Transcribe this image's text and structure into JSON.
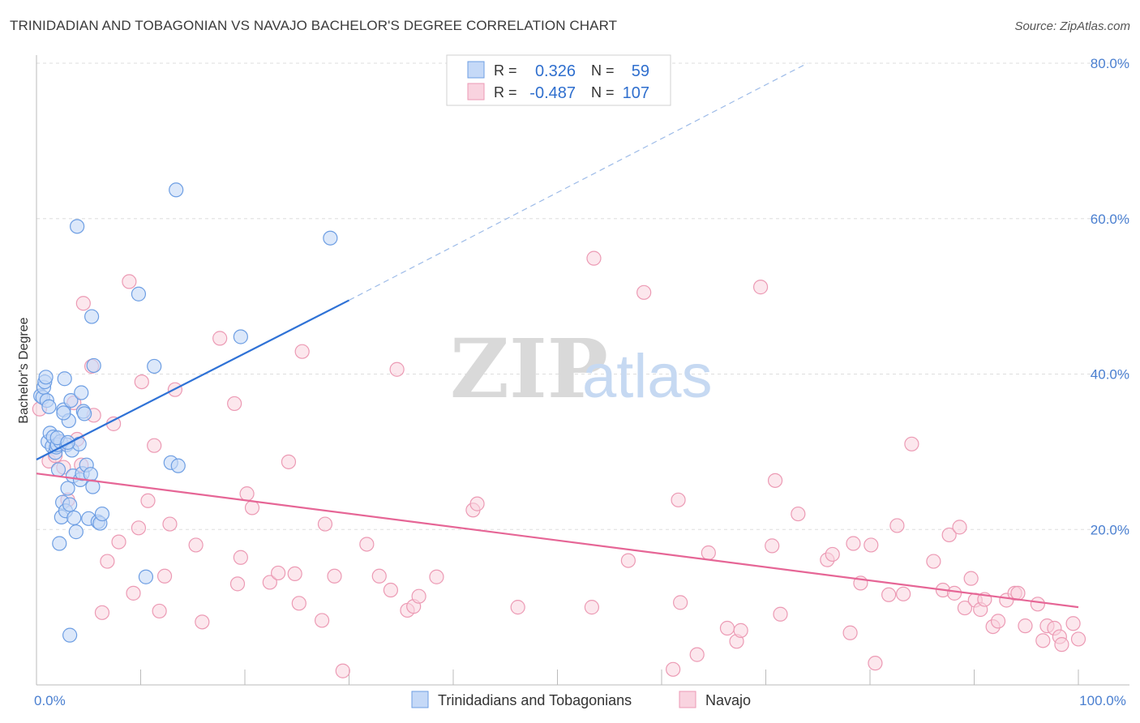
{
  "title": "TRINIDADIAN AND TOBAGONIAN VS NAVAJO BACHELOR'S DEGREE CORRELATION CHART",
  "source": "Source: ZipAtlas.com",
  "watermark": {
    "zip": "ZIP",
    "atlas": "atlas"
  },
  "colors": {
    "blue_fill": "#c5d9f7",
    "blue_stroke": "#6d9ee3",
    "blue_line": "#2f72d6",
    "pink_fill": "#f9d3df",
    "pink_stroke": "#ec9ab4",
    "pink_line": "#e66696",
    "grid": "#dddddd",
    "tick_text": "#4a7fd0"
  },
  "legend": {
    "rows": [
      {
        "r_label": "R =",
        "r_value": "0.326",
        "n_label": "N =",
        "n_value": "59",
        "series": "blue"
      },
      {
        "r_label": "R =",
        "r_value": "-0.487",
        "n_label": "N =",
        "n_value": "107",
        "series": "pink"
      }
    ]
  },
  "bottom_legend": [
    "Trinidadians and Tobagonians",
    "Navajo"
  ],
  "chart_data": {
    "type": "scatter",
    "title": "TRINIDADIAN AND TOBAGONIAN VS NAVAJO BACHELOR'S DEGREE CORRELATION CHART",
    "xlabel": "",
    "ylabel": "Bachelor's Degree",
    "xlim": [
      0,
      100
    ],
    "ylim": [
      0,
      80
    ],
    "x_tick_labels": [
      {
        "value": 0,
        "label": "0.0%"
      },
      {
        "value": 100,
        "label": "100.0%"
      }
    ],
    "y_tick_labels": [
      {
        "value": 20,
        "label": "20.0%"
      },
      {
        "value": 40,
        "label": "40.0%"
      },
      {
        "value": 60,
        "label": "60.0%"
      },
      {
        "value": 80,
        "label": "80.0%"
      }
    ],
    "series": [
      {
        "name": "Trinidadians and Tobagonians",
        "color": "blue",
        "R": 0.326,
        "N": 59,
        "trend": {
          "x0": 0,
          "y0": 29.0,
          "x1": 30,
          "y1": 49.5,
          "dashed_to_x": 74,
          "dashed_to_y": 80
        },
        "points": [
          [
            0.4,
            37.2
          ],
          [
            0.6,
            37.0
          ],
          [
            0.7,
            38.3
          ],
          [
            0.8,
            39.0
          ],
          [
            0.9,
            39.6
          ],
          [
            1.0,
            36.6
          ],
          [
            1.1,
            31.3
          ],
          [
            1.3,
            32.4
          ],
          [
            1.5,
            30.7
          ],
          [
            1.6,
            31.9
          ],
          [
            1.8,
            29.9
          ],
          [
            1.9,
            30.6
          ],
          [
            2.0,
            30.9
          ],
          [
            2.1,
            27.7
          ],
          [
            2.2,
            18.2
          ],
          [
            2.3,
            31.3
          ],
          [
            2.4,
            21.6
          ],
          [
            2.5,
            23.5
          ],
          [
            2.6,
            35.4
          ],
          [
            2.7,
            39.4
          ],
          [
            2.8,
            22.4
          ],
          [
            2.9,
            30.9
          ],
          [
            3.0,
            25.3
          ],
          [
            3.1,
            34.0
          ],
          [
            3.2,
            23.2
          ],
          [
            3.3,
            36.6
          ],
          [
            3.4,
            30.2
          ],
          [
            3.5,
            26.9
          ],
          [
            3.6,
            21.5
          ],
          [
            3.8,
            19.7
          ],
          [
            3.9,
            59.0
          ],
          [
            4.1,
            31.0
          ],
          [
            4.2,
            26.4
          ],
          [
            4.3,
            37.6
          ],
          [
            4.4,
            27.2
          ],
          [
            4.5,
            35.2
          ],
          [
            4.6,
            34.9
          ],
          [
            4.8,
            28.3
          ],
          [
            5.0,
            21.4
          ],
          [
            5.2,
            27.1
          ],
          [
            5.3,
            47.4
          ],
          [
            5.4,
            25.5
          ],
          [
            5.5,
            41.1
          ],
          [
            5.9,
            21.0
          ],
          [
            6.1,
            20.8
          ],
          [
            6.3,
            22.0
          ],
          [
            9.8,
            50.3
          ],
          [
            10.5,
            13.9
          ],
          [
            11.3,
            41.0
          ],
          [
            12.9,
            28.6
          ],
          [
            13.4,
            63.7
          ],
          [
            13.6,
            28.2
          ],
          [
            19.6,
            44.8
          ],
          [
            28.2,
            57.5
          ],
          [
            3.2,
            6.4
          ],
          [
            2.6,
            35.0
          ],
          [
            1.2,
            35.8
          ],
          [
            2.0,
            31.8
          ],
          [
            3.0,
            31.2
          ]
        ]
      },
      {
        "name": "Navajo",
        "color": "pink",
        "R": -0.487,
        "N": 107,
        "trend": {
          "x0": 0,
          "y0": 27.2,
          "x1": 100,
          "y1": 10.0
        },
        "points": [
          [
            0.3,
            35.5
          ],
          [
            1.2,
            28.8
          ],
          [
            1.8,
            29.5
          ],
          [
            2.4,
            31.1
          ],
          [
            2.6,
            28.0
          ],
          [
            3.0,
            23.8
          ],
          [
            3.6,
            36.3
          ],
          [
            3.9,
            31.6
          ],
          [
            4.3,
            28.3
          ],
          [
            4.5,
            49.1
          ],
          [
            5.3,
            41.0
          ],
          [
            5.5,
            34.7
          ],
          [
            6.3,
            9.3
          ],
          [
            6.8,
            15.9
          ],
          [
            7.4,
            33.6
          ],
          [
            7.9,
            18.4
          ],
          [
            8.9,
            51.9
          ],
          [
            9.3,
            11.8
          ],
          [
            9.8,
            20.2
          ],
          [
            10.1,
            39.0
          ],
          [
            10.7,
            23.7
          ],
          [
            11.3,
            30.8
          ],
          [
            11.8,
            9.5
          ],
          [
            12.3,
            14.0
          ],
          [
            12.8,
            20.7
          ],
          [
            13.3,
            38.0
          ],
          [
            15.3,
            18.0
          ],
          [
            15.9,
            8.1
          ],
          [
            17.6,
            44.6
          ],
          [
            19.0,
            36.2
          ],
          [
            19.3,
            13.0
          ],
          [
            19.6,
            16.4
          ],
          [
            20.2,
            24.6
          ],
          [
            20.7,
            22.8
          ],
          [
            22.4,
            13.2
          ],
          [
            23.2,
            14.4
          ],
          [
            24.2,
            28.7
          ],
          [
            24.8,
            14.3
          ],
          [
            25.2,
            10.5
          ],
          [
            25.5,
            42.9
          ],
          [
            27.4,
            8.3
          ],
          [
            27.7,
            20.7
          ],
          [
            28.6,
            14.0
          ],
          [
            29.4,
            1.8
          ],
          [
            31.7,
            18.1
          ],
          [
            32.9,
            14.0
          ],
          [
            34.0,
            12.2
          ],
          [
            34.6,
            40.6
          ],
          [
            35.6,
            9.6
          ],
          [
            36.2,
            10.1
          ],
          [
            36.7,
            11.4
          ],
          [
            38.4,
            13.9
          ],
          [
            41.9,
            22.5
          ],
          [
            42.3,
            23.3
          ],
          [
            46.2,
            10.0
          ],
          [
            53.3,
            10.0
          ],
          [
            53.5,
            54.9
          ],
          [
            56.8,
            16.0
          ],
          [
            58.3,
            50.5
          ],
          [
            61.1,
            2.0
          ],
          [
            61.6,
            23.8
          ],
          [
            61.8,
            10.6
          ],
          [
            63.4,
            3.9
          ],
          [
            64.5,
            17.0
          ],
          [
            66.3,
            7.3
          ],
          [
            67.2,
            5.6
          ],
          [
            67.6,
            7.0
          ],
          [
            69.5,
            51.2
          ],
          [
            70.6,
            17.9
          ],
          [
            70.9,
            26.3
          ],
          [
            71.4,
            9.1
          ],
          [
            73.1,
            22.0
          ],
          [
            75.9,
            16.1
          ],
          [
            76.4,
            16.8
          ],
          [
            78.1,
            6.7
          ],
          [
            78.4,
            18.2
          ],
          [
            79.1,
            13.1
          ],
          [
            80.1,
            18.0
          ],
          [
            80.5,
            2.8
          ],
          [
            81.8,
            11.6
          ],
          [
            82.6,
            20.5
          ],
          [
            83.2,
            11.7
          ],
          [
            84.0,
            31.0
          ],
          [
            86.1,
            15.9
          ],
          [
            87.0,
            12.2
          ],
          [
            87.6,
            19.3
          ],
          [
            88.1,
            11.8
          ],
          [
            88.6,
            20.3
          ],
          [
            89.1,
            9.9
          ],
          [
            89.7,
            13.7
          ],
          [
            90.1,
            10.9
          ],
          [
            90.6,
            9.7
          ],
          [
            91.0,
            11.0
          ],
          [
            91.8,
            7.5
          ],
          [
            92.3,
            8.2
          ],
          [
            93.1,
            10.9
          ],
          [
            93.9,
            11.8
          ],
          [
            94.2,
            11.8
          ],
          [
            94.9,
            7.6
          ],
          [
            96.1,
            10.4
          ],
          [
            96.6,
            5.7
          ],
          [
            97.0,
            7.6
          ],
          [
            97.7,
            7.3
          ],
          [
            98.2,
            6.2
          ],
          [
            98.4,
            5.2
          ],
          [
            99.5,
            7.9
          ],
          [
            100.0,
            5.9
          ]
        ]
      }
    ]
  }
}
